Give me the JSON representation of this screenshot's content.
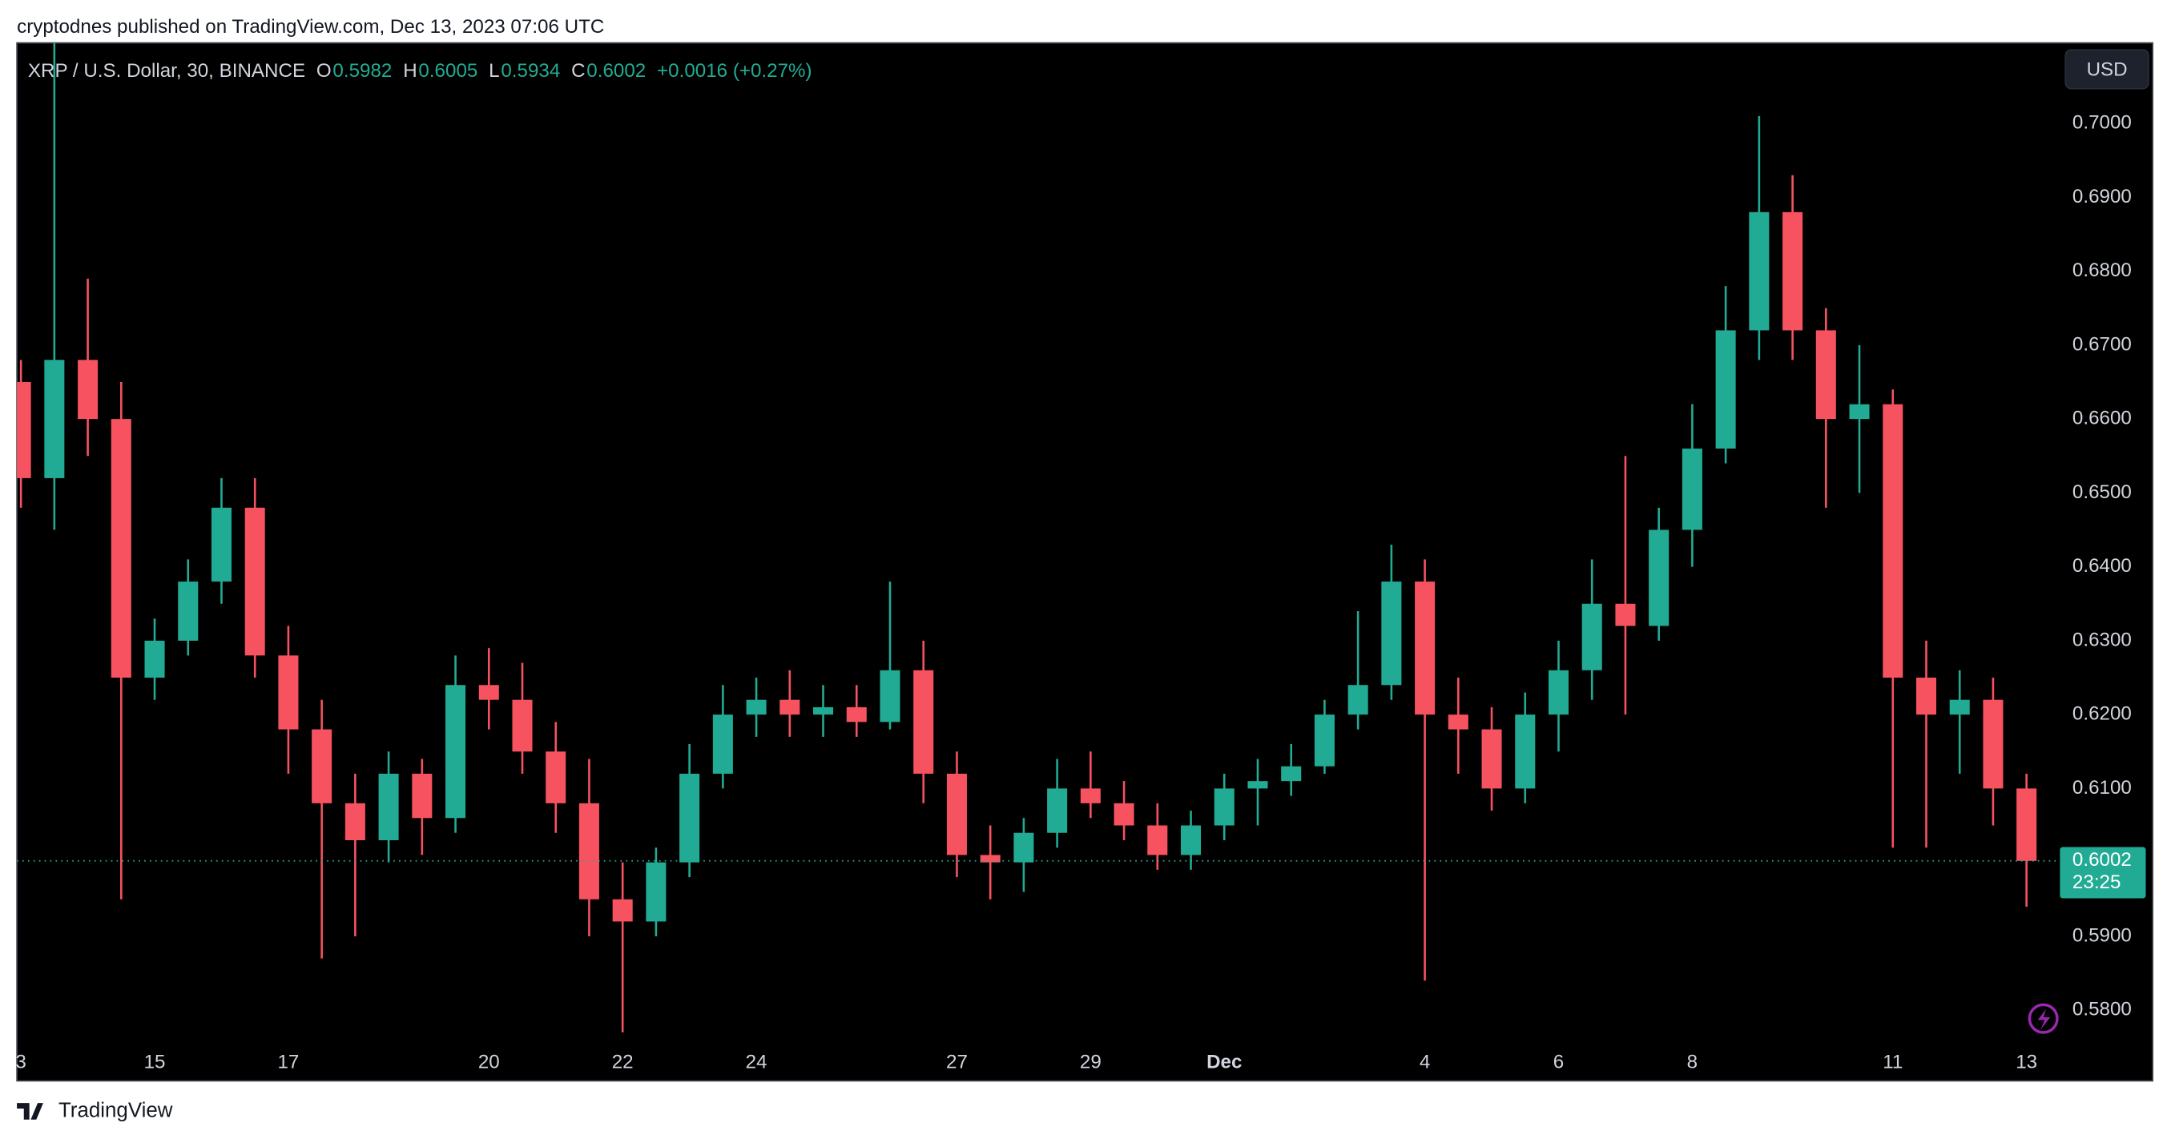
{
  "header": {
    "published": "cryptodnes published on TradingView.com, Dec 13, 2023 07:06 UTC",
    "symbol": "XRP / U.S. Dollar, 30, BINANCE",
    "ohlc": [
      {
        "label": "O",
        "value": "0.5982"
      },
      {
        "label": "H",
        "value": "0.6005"
      },
      {
        "label": "L",
        "value": "0.5934"
      },
      {
        "label": "C",
        "value": "0.6002"
      }
    ],
    "change": "+0.0016 (+0.27%)",
    "currency": "USD",
    "brand": "TradingView"
  },
  "chart_data": {
    "type": "candlestick",
    "x": [
      0,
      0.5,
      1,
      1.5,
      2,
      2.5,
      3,
      3.5,
      4,
      4.5,
      5,
      5.5,
      6,
      6.5,
      7,
      7.5,
      8,
      8.5,
      9,
      9.5,
      10,
      10.5,
      11,
      11.5,
      12,
      12.5,
      13,
      13.5,
      14,
      14.5,
      15,
      15.5,
      16,
      16.5,
      17,
      17.5,
      18,
      18.5,
      19,
      19.5,
      20,
      20.5,
      21,
      21.5,
      22,
      22.5,
      23,
      23.5,
      24,
      24.5,
      25,
      25.5,
      26,
      26.5,
      27,
      27.5,
      28,
      28.5,
      29,
      29.5,
      30
    ],
    "open": [
      0.665,
      0.652,
      0.668,
      0.66,
      0.625,
      0.63,
      0.638,
      0.648,
      0.628,
      0.618,
      0.608,
      0.603,
      0.612,
      0.606,
      0.624,
      0.622,
      0.615,
      0.608,
      0.595,
      0.592,
      0.6,
      0.612,
      0.62,
      0.622,
      0.62,
      0.621,
      0.619,
      0.626,
      0.612,
      0.601,
      0.6,
      0.604,
      0.61,
      0.608,
      0.605,
      0.601,
      0.605,
      0.61,
      0.611,
      0.613,
      0.62,
      0.624,
      0.638,
      0.62,
      0.618,
      0.61,
      0.62,
      0.626,
      0.635,
      0.632,
      0.645,
      0.656,
      0.672,
      0.688,
      0.672,
      0.66,
      0.662,
      0.625,
      0.62,
      0.622,
      0.61
    ],
    "high": [
      0.668,
      0.711,
      0.679,
      0.665,
      0.633,
      0.641,
      0.652,
      0.652,
      0.632,
      0.622,
      0.612,
      0.615,
      0.614,
      0.628,
      0.629,
      0.627,
      0.619,
      0.614,
      0.6,
      0.602,
      0.616,
      0.624,
      0.625,
      0.626,
      0.624,
      0.624,
      0.638,
      0.63,
      0.615,
      0.605,
      0.606,
      0.614,
      0.615,
      0.611,
      0.608,
      0.607,
      0.612,
      0.614,
      0.616,
      0.622,
      0.634,
      0.643,
      0.641,
      0.625,
      0.621,
      0.623,
      0.63,
      0.641,
      0.655,
      0.648,
      0.662,
      0.678,
      0.701,
      0.693,
      0.675,
      0.67,
      0.664,
      0.63,
      0.626,
      0.625,
      0.612
    ],
    "low": [
      0.648,
      0.645,
      0.655,
      0.595,
      0.622,
      0.628,
      0.635,
      0.625,
      0.612,
      0.587,
      0.59,
      0.6,
      0.601,
      0.604,
      0.618,
      0.612,
      0.604,
      0.59,
      0.577,
      0.59,
      0.598,
      0.61,
      0.617,
      0.617,
      0.617,
      0.617,
      0.618,
      0.608,
      0.598,
      0.595,
      0.596,
      0.602,
      0.606,
      0.603,
      0.599,
      0.599,
      0.603,
      0.605,
      0.609,
      0.612,
      0.618,
      0.622,
      0.584,
      0.612,
      0.607,
      0.608,
      0.615,
      0.622,
      0.62,
      0.63,
      0.64,
      0.654,
      0.668,
      0.668,
      0.648,
      0.65,
      0.602,
      0.602,
      0.612,
      0.605,
      0.594
    ],
    "close": [
      0.652,
      0.668,
      0.66,
      0.625,
      0.63,
      0.638,
      0.648,
      0.628,
      0.618,
      0.608,
      0.603,
      0.612,
      0.606,
      0.624,
      0.622,
      0.615,
      0.608,
      0.595,
      0.592,
      0.6,
      0.612,
      0.62,
      0.622,
      0.62,
      0.621,
      0.619,
      0.626,
      0.612,
      0.601,
      0.6,
      0.604,
      0.61,
      0.608,
      0.605,
      0.601,
      0.605,
      0.61,
      0.611,
      0.613,
      0.62,
      0.624,
      0.638,
      0.62,
      0.618,
      0.61,
      0.62,
      0.626,
      0.635,
      0.632,
      0.645,
      0.656,
      0.672,
      0.688,
      0.672,
      0.66,
      0.662,
      0.625,
      0.62,
      0.622,
      0.61,
      0.6002
    ],
    "up_color": "#22ab94",
    "down_color": "#f7525f",
    "xlim": [
      -0.06,
      30.5
    ],
    "xticks": [
      {
        "value": 0,
        "label": "3"
      },
      {
        "value": 2,
        "label": "15"
      },
      {
        "value": 4,
        "label": "17"
      },
      {
        "value": 7,
        "label": "20"
      },
      {
        "value": 9,
        "label": "22"
      },
      {
        "value": 11,
        "label": "24"
      },
      {
        "value": 14,
        "label": "27"
      },
      {
        "value": 16,
        "label": "29"
      },
      {
        "value": 18,
        "label": "Dec"
      },
      {
        "value": 21,
        "label": "4"
      },
      {
        "value": 23,
        "label": "6"
      },
      {
        "value": 25,
        "label": "8"
      },
      {
        "value": 28,
        "label": "11"
      },
      {
        "value": 30,
        "label": "13"
      }
    ],
    "ylim": [
      0.5753,
      0.7109
    ],
    "yticks": [
      {
        "value": 0.58,
        "label": "0.5800"
      },
      {
        "value": 0.59,
        "label": "0.5900"
      },
      {
        "value": 0.6,
        "label": "0.6000"
      },
      {
        "value": 0.61,
        "label": "0.6100"
      },
      {
        "value": 0.62,
        "label": "0.6200"
      },
      {
        "value": 0.63,
        "label": "0.6300"
      },
      {
        "value": 0.64,
        "label": "0.6400"
      },
      {
        "value": 0.65,
        "label": "0.6500"
      },
      {
        "value": 0.66,
        "label": "0.6600"
      },
      {
        "value": 0.67,
        "label": "0.6700"
      },
      {
        "value": 0.68,
        "label": "0.6800"
      },
      {
        "value": 0.69,
        "label": "0.6900"
      },
      {
        "value": 0.7,
        "label": "0.7000"
      }
    ],
    "grid": false,
    "last_price": {
      "value": 0.6002,
      "label": "0.6002"
    },
    "countdown": "23:25"
  }
}
